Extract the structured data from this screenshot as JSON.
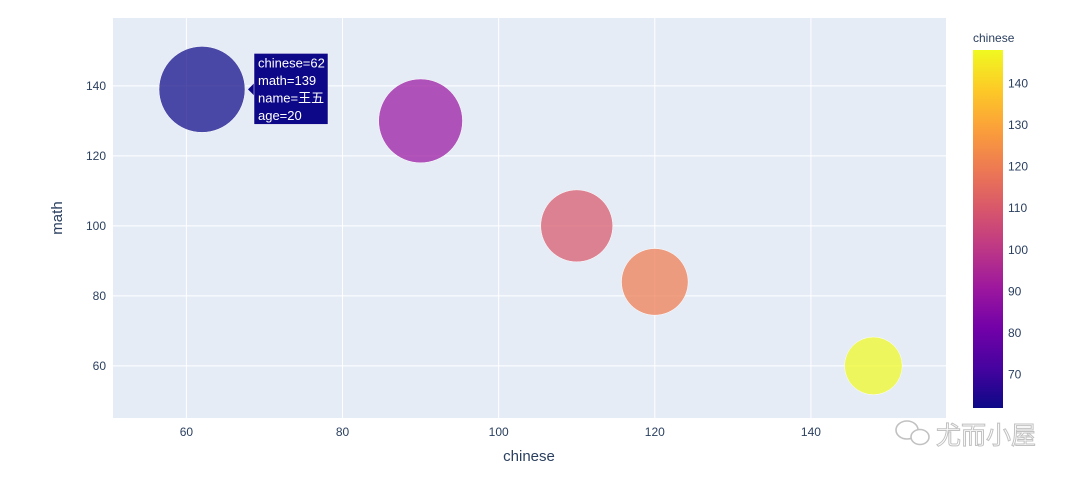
{
  "chart_data": {
    "type": "scatter",
    "xlabel": "chinese",
    "ylabel": "math",
    "xlim": [
      50.6,
      157.3
    ],
    "ylim": [
      45.1,
      159.4
    ],
    "x_ticks": [
      60,
      80,
      100,
      120,
      140
    ],
    "y_ticks": [
      60,
      80,
      100,
      120,
      140
    ],
    "grid": true,
    "points": [
      {
        "chinese": 62,
        "math": 139,
        "age": 20
      },
      {
        "chinese": 90,
        "math": 130,
        "age": 19
      },
      {
        "chinese": 110,
        "math": 100,
        "age": 14
      },
      {
        "chinese": 120,
        "math": 84,
        "age": 12
      },
      {
        "chinese": 148,
        "math": 60,
        "age": 9
      }
    ],
    "size_field": "age",
    "color_field": "chinese",
    "colorbar": {
      "title": "chinese",
      "range": [
        62,
        148
      ],
      "ticks": [
        70,
        80,
        90,
        100,
        110,
        120,
        130,
        140
      ],
      "colorscale": [
        "#0d0887",
        "#46039f",
        "#7201a8",
        "#9c179e",
        "#bd3786",
        "#d8576b",
        "#ed7953",
        "#fb9f3a",
        "#fdca26",
        "#f0f921"
      ]
    },
    "tooltip": {
      "lines": [
        "chinese=62",
        "math=139",
        "name=王五",
        "age=20"
      ],
      "background": "#0d0887"
    },
    "plot_bg": "#e5ecf6"
  },
  "watermark": {
    "text": "尤而小屋",
    "icon": "wechat-icon"
  }
}
